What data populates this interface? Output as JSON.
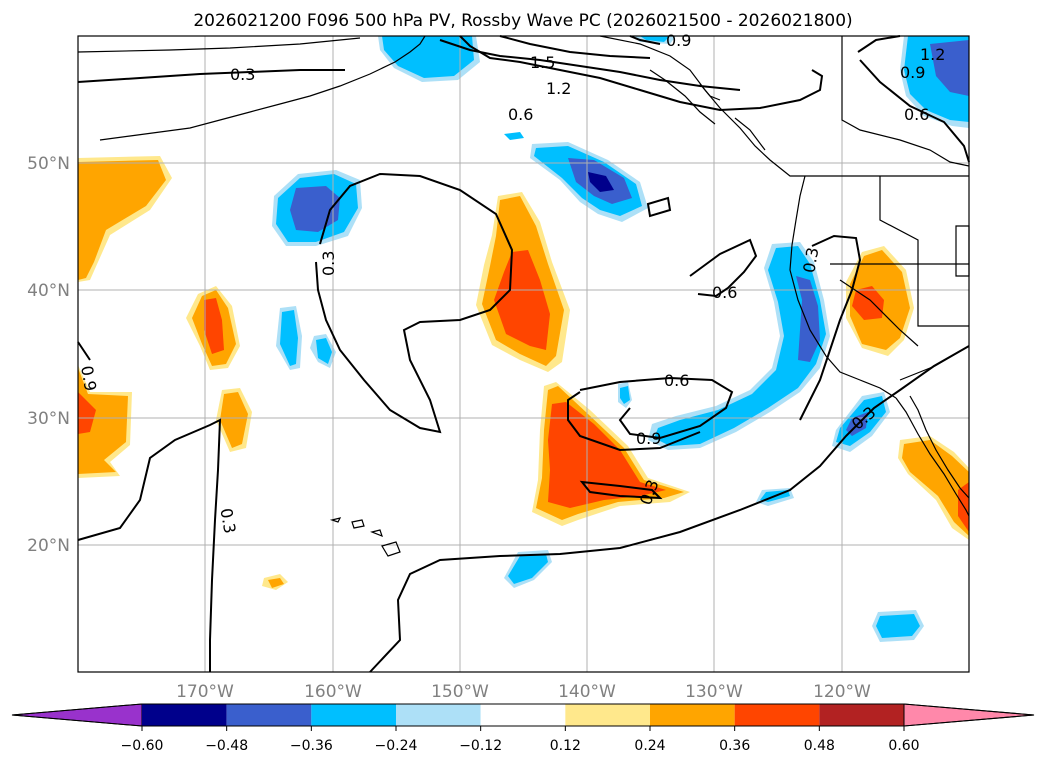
{
  "title": "2026021200 F096 500 hPa PV, Rossby Wave PC (2026021500 - 2026021800)",
  "map": {
    "lon_labels": [
      "170°W",
      "160°W",
      "150°W",
      "140°W",
      "130°W",
      "120°W"
    ],
    "lat_labels": [
      "50°N",
      "40°N",
      "30°N",
      "20°N"
    ],
    "contour_labels": [
      "0.3",
      "0.3",
      "0.3",
      "0.3",
      "0.3",
      "0.6",
      "0.6",
      "0.6",
      "0.9",
      "0.9",
      "1.2",
      "1.5",
      "0.3",
      "0.6",
      "0.9",
      "1.2",
      "0.9"
    ]
  },
  "colorbar": {
    "levels": [
      "−0.60",
      "−0.48",
      "−0.36",
      "−0.24",
      "−0.12",
      "0.12",
      "0.24",
      "0.36",
      "0.48",
      "0.60"
    ],
    "colors": [
      "#9932CC",
      "#00008B",
      "#3A5FCD",
      "#00BFFF",
      "#ADE0F7",
      "#FFFFFF",
      "#FFE88C",
      "#FFA500",
      "#FF4500",
      "#B22222",
      "#FF88AA"
    ]
  }
}
